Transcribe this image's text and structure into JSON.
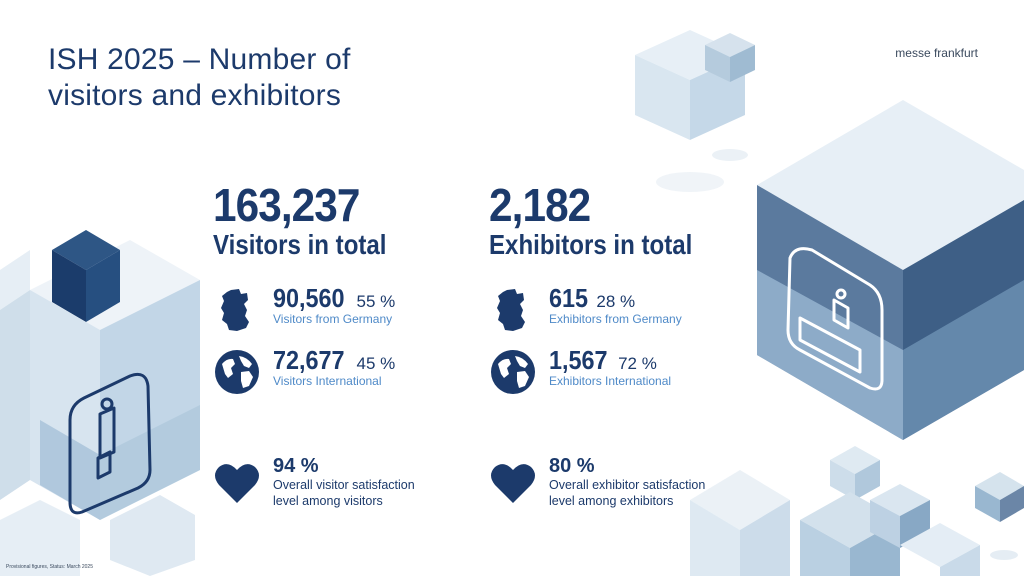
{
  "header": {
    "title_line1": "ISH 2025 – Number of",
    "title_line2": "visitors and exhibitors",
    "brand": "messe frankfurt"
  },
  "visitors": {
    "total": "163,237",
    "total_label": "Visitors in total",
    "germany": {
      "value": "90,560",
      "percent": "55 %",
      "label": "Visitors from Germany"
    },
    "international": {
      "value": "72,677",
      "percent": "45 %",
      "label": "Visitors International"
    },
    "satisfaction": {
      "percent": "94 %",
      "line1": "Overall visitor satisfaction",
      "line2": "level among visitors"
    }
  },
  "exhibitors": {
    "total": "2,182",
    "total_label": "Exhibitors in total",
    "germany": {
      "value": "615",
      "percent": "28 %",
      "label": "Exhibitors from Germany"
    },
    "international": {
      "value": "1,567",
      "percent": "72 %",
      "label": "Exhibitors International"
    },
    "satisfaction": {
      "percent": "80 %",
      "line1": "Overall exhibitor satisfaction",
      "line2": "level among exhibitors"
    }
  },
  "footnote": "Provisional figures, Status: March 2025",
  "colors": {
    "navy": "#1c3a6b",
    "accent_blue": "#4f8ac8",
    "cube_mid": "#5b7a9e",
    "cube_light": "#cfe0ee"
  }
}
